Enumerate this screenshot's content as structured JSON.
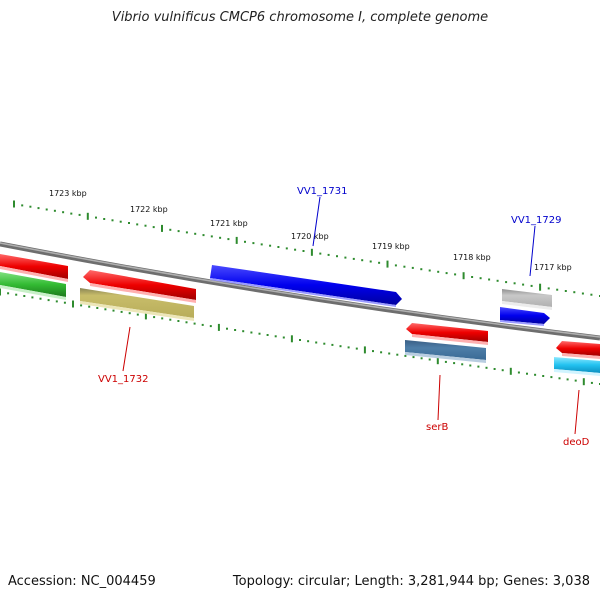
{
  "title": "Vibrio vulnificus CMCP6 chromosome I, complete genome",
  "footer": {
    "accession": "Accession: NC_004459",
    "summary": "Topology: circular; Length: 3,281,944 bp; Genes: 3,038"
  },
  "ticks": [
    "1723 kbp",
    "1722 kbp",
    "1721 kbp",
    "1720 kbp",
    "1719 kbp",
    "1718 kbp",
    "1717 kbp"
  ],
  "gene_labels": {
    "vv1_1731": "VV1_1731",
    "vv1_1729": "VV1_1729",
    "vv1_1732": "VV1_1732",
    "serB": "serB",
    "deoD": "deoD"
  },
  "colors": {
    "backbone": "#808080",
    "tick": "#2e8b2e",
    "forward_cds": "#0000ee",
    "reverse_cds": "#ee0000",
    "label_forward": "#0000cc",
    "label_reverse": "#cc0000"
  }
}
